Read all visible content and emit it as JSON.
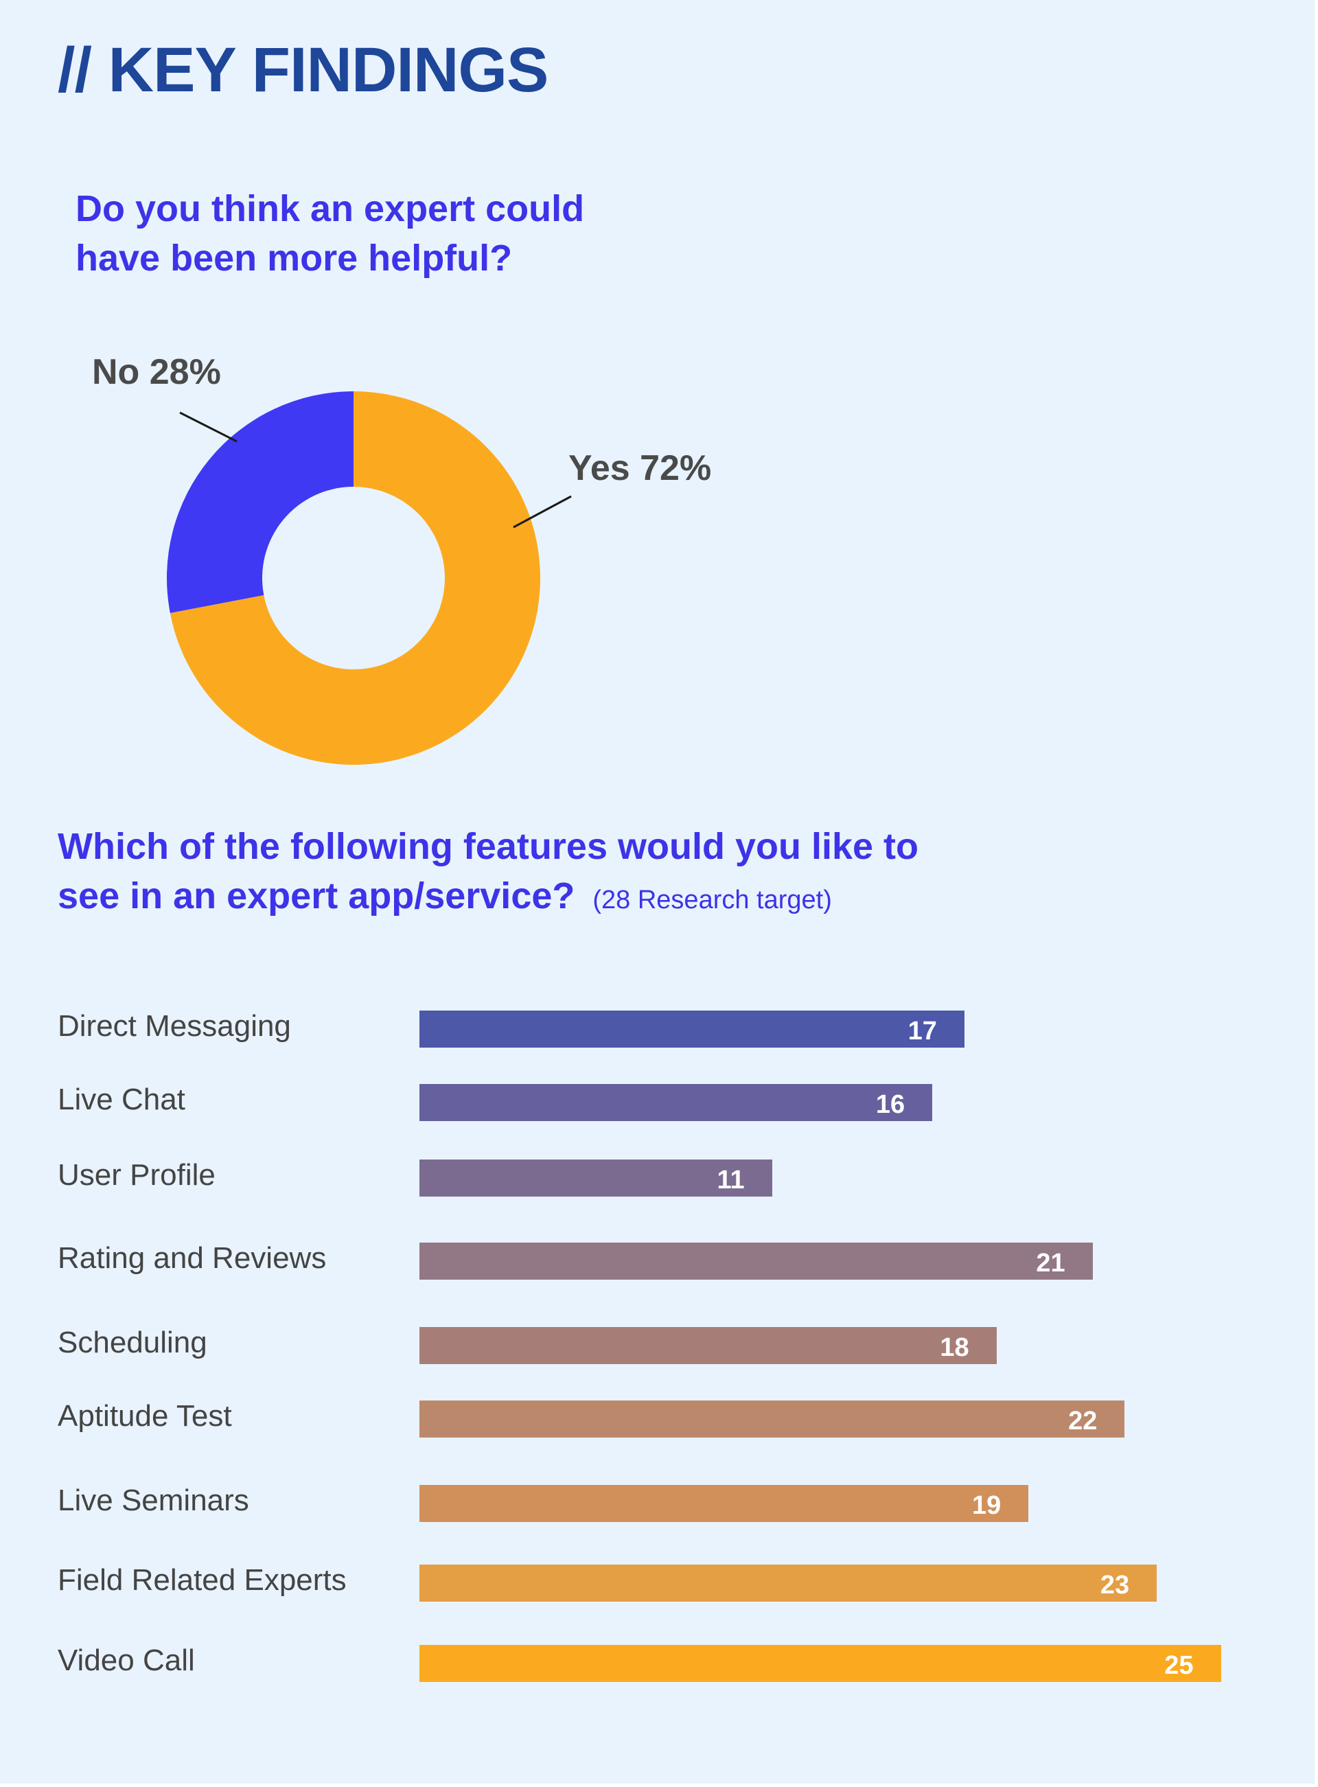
{
  "page": {
    "heading": "// KEY FINDINGS",
    "colors": {
      "background": "#E9F3FD",
      "heading": "#1E4699",
      "question": "#3D33E8",
      "label_text": "#4A4A4A"
    }
  },
  "chart_data": [
    {
      "type": "pie",
      "title_lines": [
        "Do you think an expert could",
        "have been more helpful?"
      ],
      "donut": true,
      "slices": [
        {
          "name": "Yes",
          "value": 72,
          "label": "Yes 72%",
          "color": "#FBAA1F"
        },
        {
          "name": "No",
          "value": 28,
          "label": "No 28%",
          "color": "#3F39F3"
        }
      ]
    },
    {
      "type": "bar",
      "orientation": "horizontal",
      "title_lines": [
        "Which of the following features would you like to",
        "see in an expert app/service?"
      ],
      "subtitle": "(28 Research target)",
      "xlim": [
        0,
        28
      ],
      "categories": [
        "Direct Messaging",
        "Live Chat",
        "User Profile",
        "Rating and Reviews",
        "Scheduling",
        "Aptitude Test",
        "Live Seminars",
        "Field Related Experts",
        "Video Call"
      ],
      "values": [
        17,
        16,
        11,
        21,
        18,
        22,
        19,
        23,
        25
      ],
      "colors": [
        "#4D58A8",
        "#66619E",
        "#7C6B90",
        "#927785",
        "#A77E77",
        "#BC886B",
        "#D1905A",
        "#E49E44",
        "#FBAA1F"
      ],
      "value_labels": [
        "17",
        "16",
        "11",
        "21",
        "18",
        "22",
        "19",
        "23",
        "25"
      ]
    }
  ]
}
